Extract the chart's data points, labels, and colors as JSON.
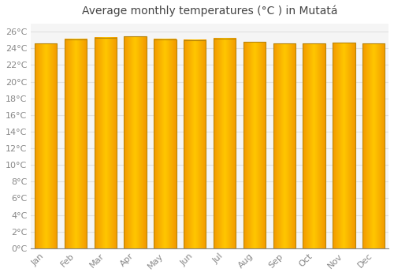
{
  "title": "Average monthly temperatures (°C ) in Mutatá",
  "months": [
    "Jan",
    "Feb",
    "Mar",
    "Apr",
    "May",
    "Jun",
    "Jul",
    "Aug",
    "Sep",
    "Oct",
    "Nov",
    "Dec"
  ],
  "values": [
    24.6,
    25.1,
    25.3,
    25.4,
    25.1,
    25.0,
    25.2,
    24.8,
    24.6,
    24.6,
    24.7,
    24.6
  ],
  "bar_color_center": "#FFD54F",
  "bar_color_edge": "#FFA000",
  "bar_border_color": "#B8860B",
  "background_color": "#ffffff",
  "plot_bg_color": "#f5f5f5",
  "grid_color": "#e0e0e0",
  "yticks": [
    0,
    2,
    4,
    6,
    8,
    10,
    12,
    14,
    16,
    18,
    20,
    22,
    24,
    26
  ],
  "ylim": [
    0,
    27
  ],
  "title_fontsize": 10,
  "tick_fontsize": 8,
  "title_color": "#444444",
  "tick_color": "#888888",
  "bar_width": 0.75
}
